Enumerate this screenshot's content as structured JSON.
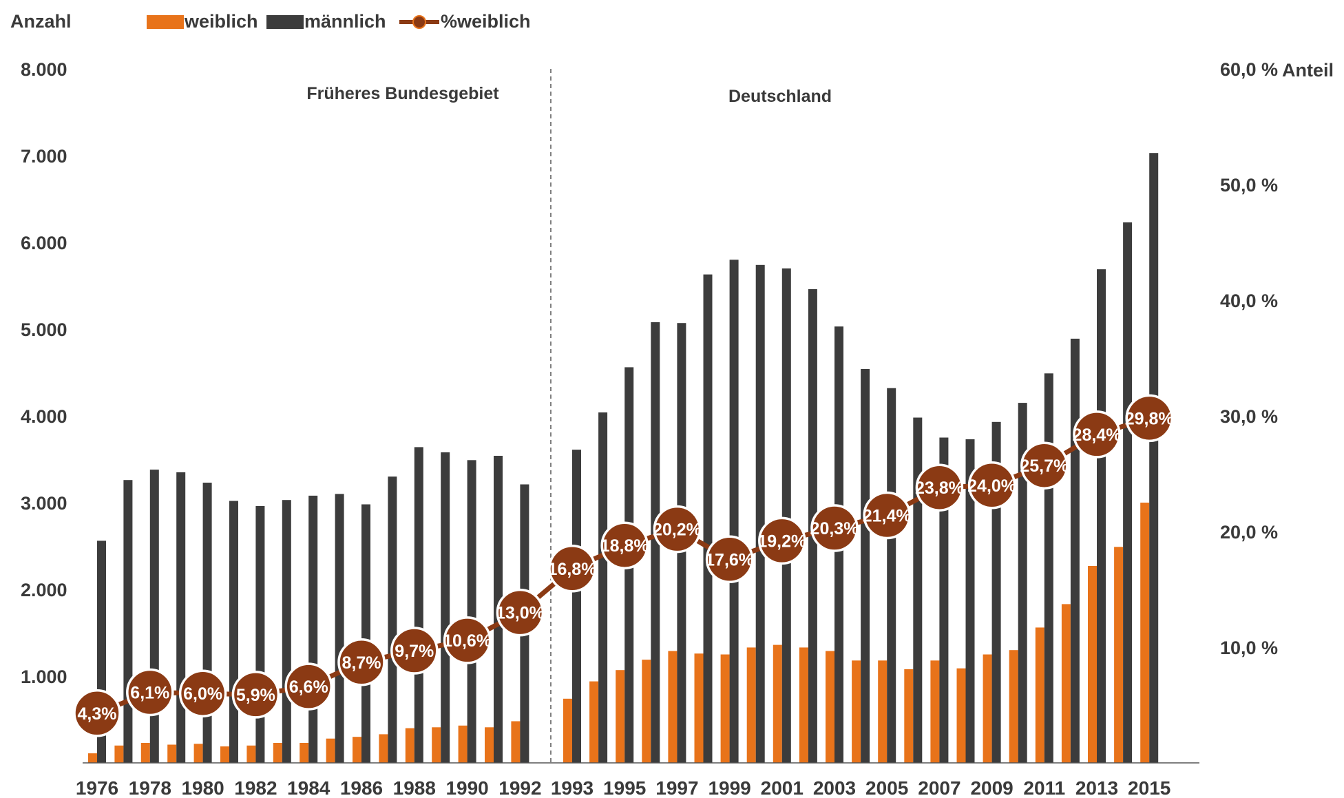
{
  "chart_data": {
    "type": "bar",
    "ylabel_left": "Anzahl",
    "ylabel_right": "Anteil",
    "legend": [
      "weiblich",
      "männlich",
      "%weiblich"
    ],
    "y_left_ticks": [
      "1.000",
      "2.000",
      "3.000",
      "4.000",
      "5.000",
      "6.000",
      "7.000",
      "8.000"
    ],
    "y_right_ticks": [
      "10,0 %",
      "20,0 %",
      "30,0 %",
      "40,0 %",
      "50,0 %",
      "60,0 %"
    ],
    "ylim_left": [
      0,
      8000
    ],
    "ylim_right": [
      0,
      60
    ],
    "annotations": [
      "Früheres Bundesgebiet",
      "Deutschland"
    ],
    "x": [
      1976,
      1977,
      1978,
      1979,
      1980,
      1981,
      1982,
      1983,
      1984,
      1985,
      1986,
      1987,
      1988,
      1989,
      1990,
      1991,
      1992,
      1993,
      1994,
      1995,
      1996,
      1997,
      1998,
      1999,
      2000,
      2001,
      2002,
      2003,
      2004,
      2005,
      2006,
      2007,
      2008,
      2009,
      2010,
      2011,
      2012,
      2013,
      2014,
      2015
    ],
    "x_tick_labels": [
      "1976",
      "1978",
      "1980",
      "1982",
      "1984",
      "1986",
      "1988",
      "1990",
      "1992",
      "1993",
      "1995",
      "1997",
      "1999",
      "2001",
      "2003",
      "2005",
      "2007",
      "2009",
      "2011",
      "2013",
      "2015"
    ],
    "series": [
      {
        "name": "weiblich",
        "color": "#e8731a",
        "values": [
          110,
          200,
          230,
          210,
          220,
          190,
          200,
          230,
          230,
          280,
          300,
          330,
          400,
          410,
          430,
          410,
          480,
          740,
          940,
          1070,
          1190,
          1290,
          1260,
          1250,
          1330,
          1360,
          1330,
          1290,
          1180,
          1180,
          1080,
          1180,
          1090,
          1250,
          1300,
          1560,
          1830,
          2270,
          2490,
          3000
        ]
      },
      {
        "name": "männlich",
        "color": "#3c3c3c",
        "values": [
          2560,
          3260,
          3380,
          3350,
          3230,
          3020,
          2960,
          3030,
          3080,
          3100,
          2980,
          3300,
          3640,
          3580,
          3490,
          3540,
          3210,
          3610,
          4040,
          4560,
          5080,
          5070,
          5630,
          5800,
          5740,
          5700,
          5460,
          5030,
          4540,
          4320,
          3980,
          3750,
          3730,
          3930,
          4150,
          4490,
          4890,
          5690,
          6230,
          7030
        ]
      },
      {
        "name": "%weiblich",
        "color": "#8b3a14",
        "points": [
          {
            "year": 1976,
            "value": 4.3,
            "label": "4,3%"
          },
          {
            "year": 1978,
            "value": 6.1,
            "label": "6,1%"
          },
          {
            "year": 1980,
            "value": 6.0,
            "label": "6,0%"
          },
          {
            "year": 1982,
            "value": 5.9,
            "label": "5,9%"
          },
          {
            "year": 1984,
            "value": 6.6,
            "label": "6,6%"
          },
          {
            "year": 1986,
            "value": 8.7,
            "label": "8,7%"
          },
          {
            "year": 1988,
            "value": 9.7,
            "label": "9,7%"
          },
          {
            "year": 1990,
            "value": 10.6,
            "label": "10,6%"
          },
          {
            "year": 1992,
            "value": 13.0,
            "label": "13,0%"
          },
          {
            "year": 1993,
            "value": 16.8,
            "label": "16,8%"
          },
          {
            "year": 1995,
            "value": 18.8,
            "label": "18,8%"
          },
          {
            "year": 1997,
            "value": 20.2,
            "label": "20,2%"
          },
          {
            "year": 1999,
            "value": 17.6,
            "label": "17,6%"
          },
          {
            "year": 2001,
            "value": 19.2,
            "label": "19,2%"
          },
          {
            "year": 2003,
            "value": 20.3,
            "label": "20,3%"
          },
          {
            "year": 2005,
            "value": 21.4,
            "label": "21,4%"
          },
          {
            "year": 2007,
            "value": 23.8,
            "label": "23,8%"
          },
          {
            "year": 2009,
            "value": 24.0,
            "label": "24,0%"
          },
          {
            "year": 2011,
            "value": 25.7,
            "label": "25,7%"
          },
          {
            "year": 2013,
            "value": 28.4,
            "label": "28,4%"
          },
          {
            "year": 2015,
            "value": 29.8,
            "label": "29,8%"
          }
        ]
      }
    ]
  }
}
